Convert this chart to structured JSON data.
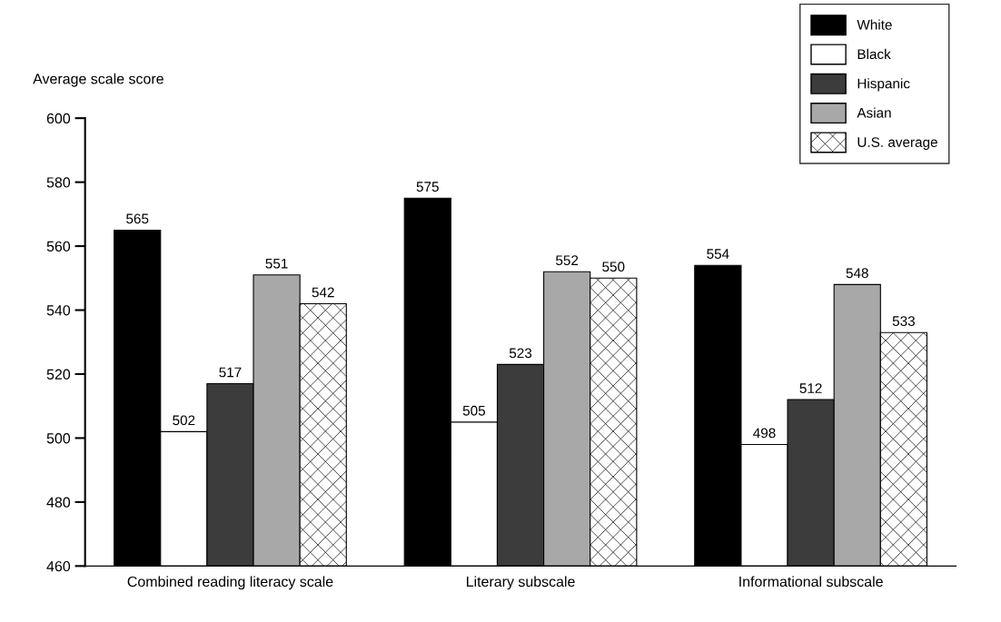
{
  "chart_data": {
    "type": "bar",
    "ylabel": "Average scale score",
    "categories": [
      "Combined reading literacy scale",
      "Literary subscale",
      "Informational subscale"
    ],
    "series": [
      {
        "name": "White",
        "color": "#000000",
        "values": [
          565,
          575,
          554
        ]
      },
      {
        "name": "Black",
        "color": "#ffffff",
        "values": [
          502,
          505,
          498
        ]
      },
      {
        "name": "Hispanic",
        "color": "#3c3c3c",
        "values": [
          517,
          523,
          512
        ]
      },
      {
        "name": "Asian",
        "color": "#a8a8a8",
        "values": [
          551,
          552,
          548
        ]
      },
      {
        "name": "U.S. average",
        "color": "#ffffff",
        "values": [
          542,
          550,
          533
        ]
      }
    ],
    "ylim": [
      460,
      600
    ],
    "yticks": [
      460,
      480,
      500,
      520,
      540,
      560,
      580,
      600
    ],
    "data_labels": true,
    "grid": false,
    "legend": "top right"
  }
}
